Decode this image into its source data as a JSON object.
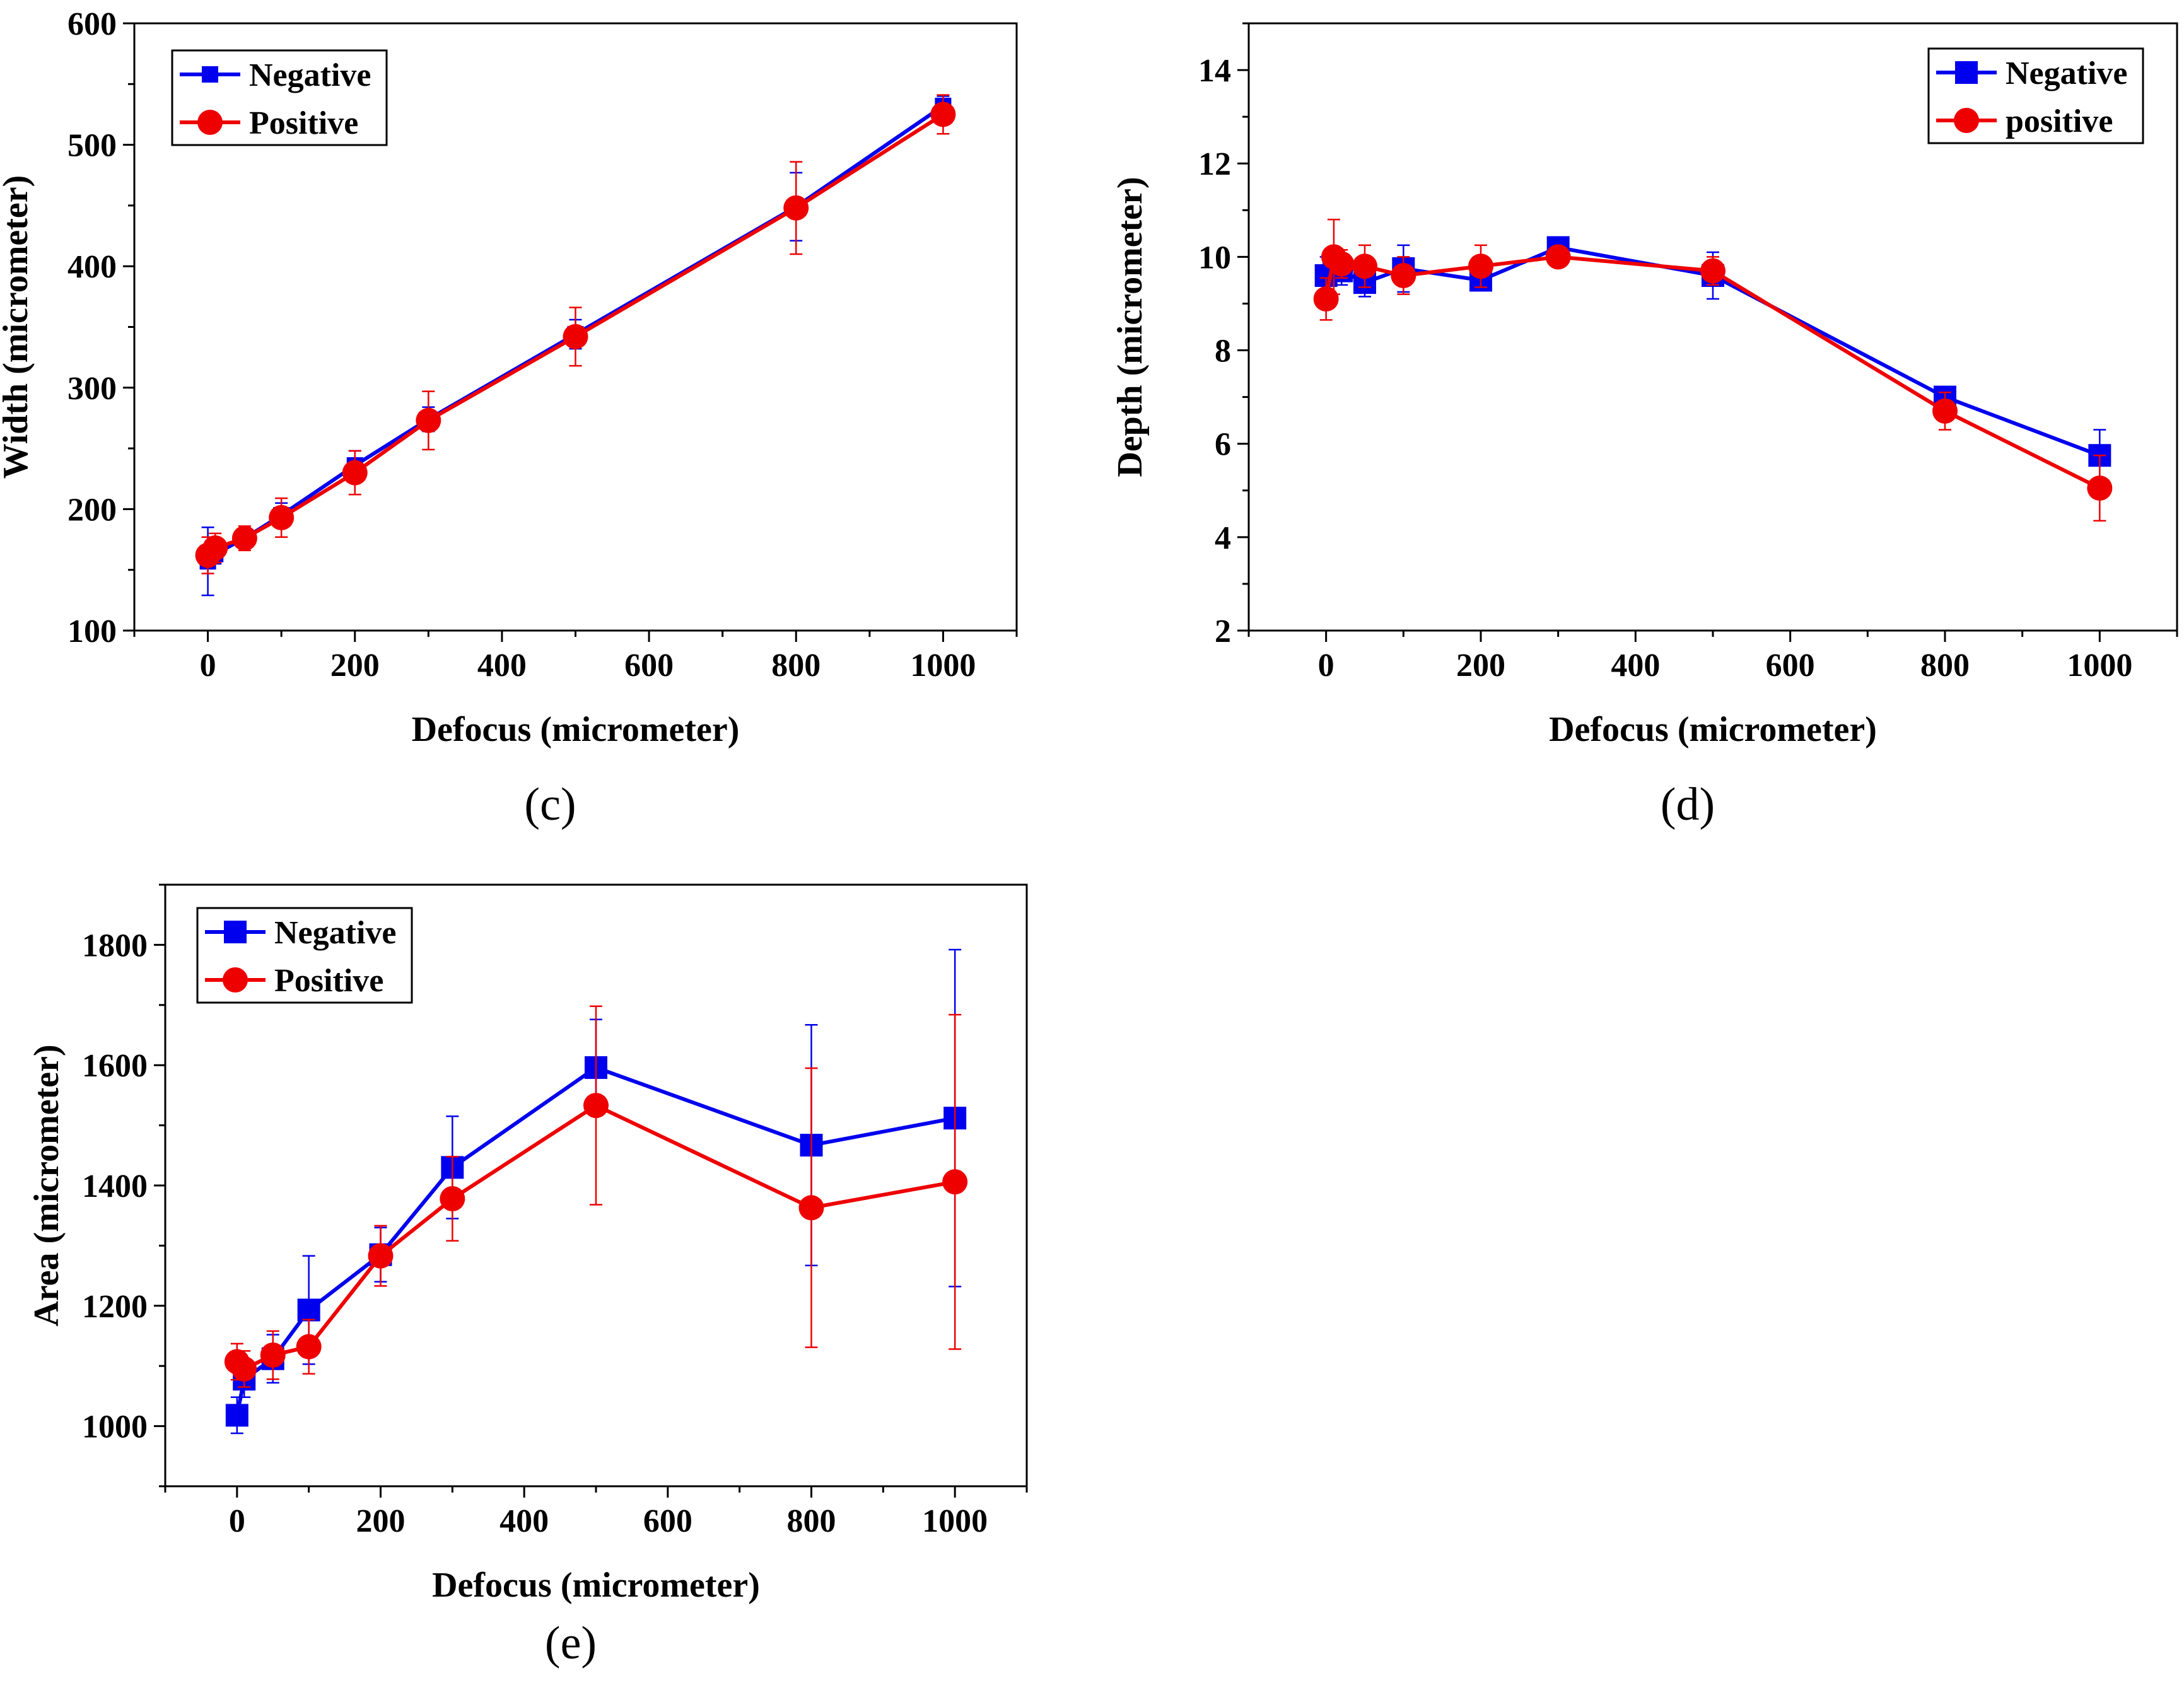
{
  "colors": {
    "negative": "#0000ee",
    "positive": "#ee0000",
    "axis": "#000000"
  },
  "chart_data": [
    {
      "type": "line",
      "caption": "(c)",
      "xlabel": "Defocus (micrometer)",
      "ylabel": "Width (micrometer)",
      "xlim": [
        -100,
        1100
      ],
      "ylim": [
        100,
        600
      ],
      "xticks": [
        0,
        200,
        400,
        600,
        800,
        1000
      ],
      "yticks": [
        100,
        200,
        300,
        400,
        500,
        600
      ],
      "legend": {
        "position": "top-left",
        "labels": [
          "Negative",
          "Positive"
        ]
      },
      "series": [
        {
          "name": "Negative",
          "marker": "square-small",
          "x": [
            0,
            10,
            50,
            100,
            200,
            300,
            500,
            800,
            1000
          ],
          "y": [
            157,
            163,
            176,
            195,
            236,
            274,
            344,
            449,
            532
          ],
          "err": [
            28,
            8,
            8,
            10,
            12,
            10,
            12,
            28,
            8
          ]
        },
        {
          "name": "Positive",
          "marker": "circle",
          "x": [
            0,
            10,
            50,
            100,
            200,
            300,
            500,
            800,
            1000
          ],
          "y": [
            162,
            168,
            176,
            193,
            230,
            273,
            342,
            448,
            525
          ],
          "err": [
            15,
            12,
            10,
            16,
            18,
            24,
            24,
            38,
            16
          ]
        }
      ]
    },
    {
      "type": "line",
      "caption": "(d)",
      "xlabel": "Defocus (micrometer)",
      "ylabel": "Depth (micrometer)",
      "xlim": [
        -100,
        1100
      ],
      "ylim": [
        2,
        15
      ],
      "xticks": [
        0,
        200,
        400,
        600,
        800,
        1000
      ],
      "yticks": [
        2,
        4,
        6,
        8,
        10,
        12,
        14
      ],
      "legend": {
        "position": "top-right",
        "labels": [
          "Negative",
          "positive"
        ]
      },
      "series": [
        {
          "name": "Negative",
          "marker": "square",
          "x": [
            0,
            10,
            20,
            50,
            100,
            200,
            300,
            500,
            800,
            1000
          ],
          "y": [
            9.6,
            9.8,
            9.7,
            9.45,
            9.75,
            9.5,
            10.2,
            9.6,
            7.0,
            5.75
          ],
          "err": [
            0.4,
            0.3,
            0.3,
            0.3,
            0.5,
            0.2,
            0.2,
            0.5,
            0.2,
            0.55
          ]
        },
        {
          "name": "positive",
          "marker": "circle",
          "x": [
            0,
            10,
            20,
            50,
            100,
            200,
            300,
            500,
            800,
            1000
          ],
          "y": [
            9.1,
            10.0,
            9.85,
            9.8,
            9.6,
            9.8,
            10.0,
            9.7,
            6.7,
            5.05
          ],
          "err": [
            0.45,
            0.8,
            0.3,
            0.45,
            0.4,
            0.45,
            0.15,
            0.3,
            0.4,
            0.7
          ]
        }
      ]
    },
    {
      "type": "line",
      "caption": "(e)",
      "xlabel": "Defocus (micrometer)",
      "ylabel": "Area (micrometer)",
      "xlim": [
        -100,
        1100
      ],
      "ylim": [
        900,
        1900
      ],
      "xticks": [
        0,
        200,
        400,
        600,
        800,
        1000
      ],
      "yticks": [
        1000,
        1200,
        1400,
        1600,
        1800
      ],
      "legend": {
        "position": "top-left",
        "labels": [
          "Negative",
          "Positive"
        ]
      },
      "series": [
        {
          "name": "Negative",
          "marker": "square",
          "x": [
            0,
            10,
            50,
            100,
            200,
            300,
            500,
            800,
            1000
          ],
          "y": [
            1018,
            1078,
            1112,
            1193,
            1285,
            1430,
            1596,
            1467,
            1512
          ],
          "err": [
            30,
            30,
            40,
            90,
            45,
            85,
            80,
            200,
            280
          ]
        },
        {
          "name": "Positive",
          "marker": "circle",
          "x": [
            0,
            10,
            50,
            100,
            200,
            300,
            500,
            800,
            1000
          ],
          "y": [
            1107,
            1095,
            1118,
            1132,
            1283,
            1378,
            1533,
            1363,
            1406
          ],
          "err": [
            30,
            30,
            40,
            45,
            50,
            70,
            165,
            232,
            278
          ]
        }
      ]
    }
  ]
}
